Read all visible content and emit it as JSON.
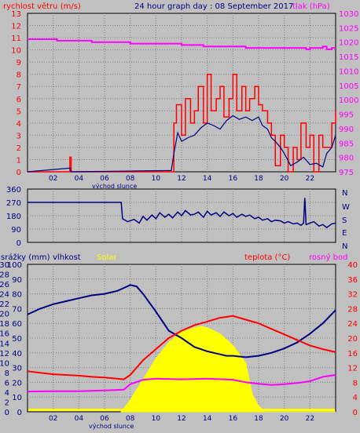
{
  "colors": {
    "bg": "#c0c0c0",
    "wind": "#ff0000",
    "gust_line": "#000080",
    "pressure": "#ff00ff",
    "humidity": "#000080",
    "solar": "#ffff00",
    "temperature": "#ff0000",
    "dewpoint": "#ff00ff",
    "grid": "#7f7f7f"
  },
  "header": {
    "left_label": "rychlost větru (m/s)",
    "title": "24 hour graph day : 08 September 2017",
    "right_label": "tlak (hPa)"
  },
  "sunrise_label": "východ slunce",
  "x_ticks": [
    "02",
    "04",
    "06",
    "08",
    "10",
    "12",
    "14",
    "16",
    "18",
    "20",
    "22"
  ],
  "direction_labels": [
    "N",
    "W",
    "S",
    "E",
    "N"
  ],
  "bottom_labels": {
    "rain": "srážky (mm)",
    "humidity": "vlhkost",
    "solar": "Solar",
    "temperature": "teplota (°C)",
    "dewpoint": "rosný bod"
  },
  "chart_data": [
    {
      "type": "line",
      "name": "wind and pressure",
      "x_unit": "hour",
      "xlim": [
        0,
        24
      ],
      "y_left_ticks": [
        "0",
        "1",
        "2",
        "3",
        "4",
        "5",
        "6",
        "7",
        "8",
        "9",
        "10",
        "11",
        "12",
        "13"
      ],
      "y_left_lim": [
        0,
        13
      ],
      "y_right_ticks": [
        "975",
        "980",
        "985",
        "990",
        "995",
        "1000",
        "1005",
        "1010",
        "1015",
        "1020",
        "1025",
        "1030"
      ],
      "y_right_lim": [
        975,
        1030
      ],
      "series": [
        {
          "axis": "right",
          "x": [
            0,
            2,
            2.3,
            4.3,
            5,
            7,
            8,
            10,
            12,
            12.3,
            13,
            13.7,
            16.7,
            17,
            18.7,
            20.3,
            21.3,
            21.7,
            22,
            22.3,
            22.7,
            23,
            23.3,
            23.7,
            24
          ],
          "y": [
            1021,
            1021,
            1020.5,
            1020.5,
            1020,
            1020,
            1019.5,
            1019.5,
            1019,
            1019,
            1019,
            1018.5,
            1018.5,
            1018,
            1018,
            1018,
            1018,
            1017.5,
            1018,
            1018,
            1018,
            1018.5,
            1017.5,
            1018,
            1018
          ]
        },
        {
          "axis": "left",
          "x": [
            0,
            3.2,
            3.3,
            3.4,
            11.2,
            11.4,
            11.6,
            12,
            12.3,
            12.7,
            13,
            13.3,
            13.7,
            14,
            14.3,
            14.7,
            15,
            15.3,
            15.7,
            16,
            16.3,
            16.7,
            17,
            17.3,
            17.7,
            18,
            18.3,
            18.7,
            19,
            19.3,
            19.7,
            20,
            20.3,
            20.7,
            21,
            21.3,
            21.7,
            22,
            22.3,
            22.7,
            23,
            23.3,
            23.7,
            24
          ],
          "y": [
            0,
            0,
            1.2,
            0,
            0,
            4,
            5.5,
            3,
            6,
            4,
            5,
            7,
            4,
            8,
            5,
            6,
            7,
            4.5,
            6,
            8,
            5,
            7,
            5,
            6,
            7,
            5.5,
            5,
            4,
            3,
            0.5,
            3,
            2,
            0,
            2,
            1,
            4,
            2,
            3,
            0,
            3,
            2,
            2,
            4,
            5
          ]
        },
        {
          "axis": "left",
          "x": [
            0,
            3.3,
            3.4,
            11.2,
            11.4,
            11.7,
            12,
            12.5,
            13,
            13.5,
            14,
            14.5,
            15,
            15.5,
            16,
            16.5,
            17,
            17.5,
            18,
            18.3,
            18.7,
            19,
            19.3,
            19.7,
            20,
            20.5,
            21,
            21.5,
            22,
            22.5,
            23,
            23.3,
            23.7,
            24
          ],
          "y": [
            0,
            0.3,
            0,
            0.1,
            1.5,
            3.2,
            2.5,
            2.8,
            3,
            3.6,
            4,
            3.8,
            3.5,
            4.2,
            4.6,
            4.3,
            4.5,
            4.2,
            4.5,
            3.8,
            3.5,
            2.8,
            2.5,
            2,
            1.5,
            0.5,
            0.8,
            1.2,
            0.6,
            0.7,
            0.4,
            1.5,
            2,
            3
          ]
        }
      ]
    },
    {
      "type": "line",
      "name": "wind direction",
      "x_unit": "hour",
      "xlim": [
        0,
        24
      ],
      "y_ticks": [
        "360",
        "270",
        "180",
        "90",
        "0"
      ],
      "ylim": [
        0,
        360
      ],
      "series": [
        {
          "x": [
            0,
            7.3,
            7.4,
            7.8,
            8.3,
            8.7,
            9,
            9.3,
            9.7,
            10,
            10.3,
            10.7,
            11,
            11.3,
            11.7,
            12,
            12.3,
            12.7,
            13,
            13.3,
            13.7,
            14,
            14.3,
            14.7,
            15,
            15.3,
            15.7,
            16,
            16.3,
            16.7,
            17,
            17.3,
            17.7,
            18,
            18.3,
            18.7,
            19,
            19.3,
            19.7,
            20,
            20.3,
            20.7,
            21,
            21.3,
            21.5,
            21.6,
            21.7,
            22,
            22.3,
            22.7,
            23,
            23.3,
            23.7,
            24
          ],
          "y": [
            270,
            270,
            160,
            140,
            155,
            130,
            175,
            150,
            185,
            160,
            200,
            170,
            190,
            165,
            205,
            180,
            215,
            185,
            190,
            205,
            170,
            210,
            185,
            200,
            175,
            205,
            180,
            195,
            170,
            190,
            175,
            185,
            160,
            170,
            150,
            160,
            140,
            150,
            145,
            130,
            140,
            125,
            130,
            115,
            130,
            300,
            120,
            130,
            140,
            110,
            120,
            100,
            125,
            130
          ]
        }
      ]
    },
    {
      "type": "line",
      "name": "humidity temperature solar",
      "x_unit": "hour",
      "xlim": [
        0,
        24
      ],
      "y_left_ticks": [
        "0",
        "2",
        "4",
        "6",
        "8",
        "10",
        "12",
        "14",
        "16",
        "18",
        "20",
        "22",
        "24",
        "26",
        "28",
        "30"
      ],
      "y_left_inner_ticks": [
        "0",
        "10",
        "20",
        "30",
        "40",
        "50",
        "60",
        "70",
        "80",
        "90",
        "100"
      ],
      "y_right_ticks": [
        "0",
        "4",
        "8",
        "12",
        "16",
        "20",
        "24",
        "28",
        "32",
        "36",
        "40"
      ],
      "series": [
        {
          "name": "vlhkost",
          "x": [
            0,
            1,
            2,
            3,
            4,
            5,
            6,
            7,
            7.5,
            8,
            8.5,
            9,
            10,
            11,
            12,
            13,
            14,
            15,
            15.5,
            16,
            17,
            18,
            19,
            20,
            21,
            22,
            23,
            24
          ],
          "y": [
            66,
            70,
            73,
            75,
            77,
            79,
            80,
            82,
            84,
            86,
            85,
            80,
            68,
            55,
            50,
            44,
            41,
            39,
            38,
            38,
            37,
            38,
            40,
            43,
            47,
            53,
            60,
            69
          ]
        },
        {
          "name": "teplota",
          "x": [
            0,
            1,
            2,
            3,
            4,
            5,
            6,
            7,
            7.5,
            8,
            9,
            10,
            11,
            12,
            13,
            14,
            15,
            16,
            17,
            18,
            19,
            20,
            21,
            22,
            23,
            24
          ],
          "y": [
            11,
            10.6,
            10.2,
            10,
            9.8,
            9.5,
            9.3,
            9,
            8.8,
            10,
            14,
            17,
            20,
            22,
            23.5,
            24.5,
            25.5,
            26,
            25,
            24,
            22.5,
            21,
            19.5,
            18,
            17,
            16.2
          ]
        },
        {
          "name": "rosný bod",
          "x": [
            0,
            2,
            4,
            6,
            7.5,
            8,
            9,
            10,
            12,
            14,
            16,
            17,
            18,
            19,
            20,
            21,
            22,
            23,
            24
          ],
          "y": [
            5.5,
            5.6,
            5.6,
            5.8,
            6,
            7.5,
            8.7,
            9,
            8.8,
            9,
            8.7,
            8,
            7.6,
            7.3,
            7.5,
            7.8,
            8.3,
            9.5,
            10
          ]
        },
        {
          "name": "Solar",
          "x": [
            7.3,
            8,
            9,
            10,
            11,
            12,
            13,
            13.5,
            14,
            15,
            16,
            17,
            17.5,
            18,
            18.5,
            24
          ],
          "y": [
            0,
            8,
            22,
            36,
            47,
            54,
            57,
            58,
            57,
            53,
            45,
            33,
            12,
            4,
            0,
            0
          ]
        }
      ]
    }
  ]
}
